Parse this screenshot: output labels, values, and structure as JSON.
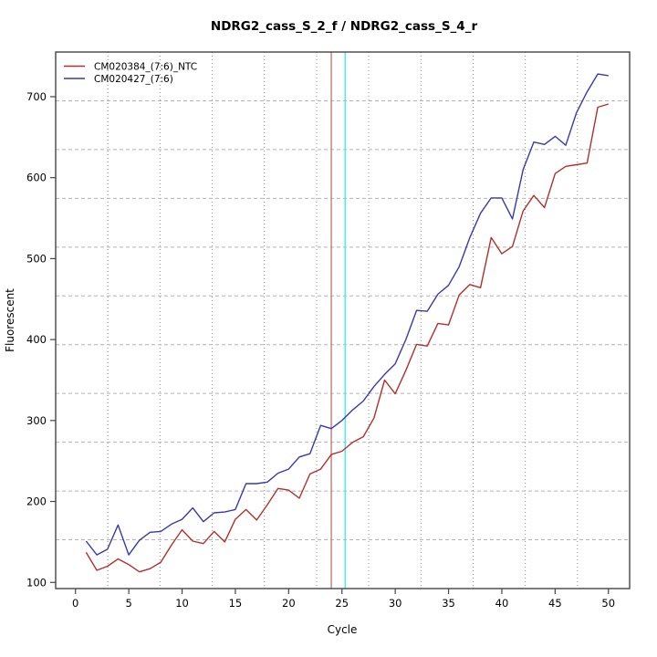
{
  "window": {
    "background": "#ffffff"
  },
  "chart_data": {
    "type": "line",
    "title": "NDRG2_cass_S_2_f / NDRG2_cass_S_4_r",
    "xlabel": "Cycle",
    "ylabel": "Fluorescent",
    "xlim": [
      -1.86,
      51.99
    ],
    "ylim": [
      92.4,
      755.2
    ],
    "x_ticks": [
      0,
      5,
      10,
      15,
      20,
      25,
      30,
      35,
      40,
      45,
      50
    ],
    "y_ticks": [
      100,
      200,
      300,
      400,
      500,
      600,
      700
    ],
    "grid": {
      "style": "offset-equal-divisions",
      "nx": 11,
      "ny": 11,
      "v_color": "#8f8f8f",
      "h_color": "#b4b4b4"
    },
    "legend_position": "top-left",
    "x": [
      1,
      2,
      3,
      4,
      5,
      6,
      7,
      8,
      9,
      10,
      11,
      12,
      13,
      14,
      15,
      16,
      17,
      18,
      19,
      20,
      21,
      22,
      23,
      24,
      25,
      26,
      27,
      28,
      29,
      30,
      31,
      32,
      33,
      34,
      35,
      36,
      37,
      38,
      39,
      40,
      41,
      42,
      43,
      44,
      45,
      46,
      47,
      48,
      49,
      50
    ],
    "series": [
      {
        "name": "CM020384_(7:6)_NTC",
        "color": "#B03030",
        "values": [
          137,
          115,
          120,
          129,
          122,
          113,
          117,
          125,
          146,
          165,
          151,
          148,
          163,
          150,
          178,
          190,
          177,
          196,
          216,
          214,
          204,
          234,
          240,
          258,
          262,
          273,
          280,
          303,
          350,
          333,
          362,
          394,
          392,
          420,
          418,
          455,
          468,
          464,
          526,
          506,
          515,
          559,
          578,
          563,
          605,
          614,
          616,
          618,
          687,
          691
        ]
      },
      {
        "name": "CM020427_(7:6)",
        "color": "#3939AC",
        "values": [
          151,
          134,
          141,
          171,
          134,
          152,
          162,
          163,
          172,
          178,
          192,
          175,
          186,
          187,
          190,
          222,
          222,
          224,
          235,
          240,
          255,
          259,
          294,
          290,
          300,
          313,
          324,
          342,
          357,
          370,
          400,
          436,
          435,
          456,
          467,
          490,
          526,
          556,
          575,
          575,
          549,
          610,
          644,
          641,
          651,
          640,
          680,
          706,
          728,
          726
        ]
      }
    ],
    "marker_lines": [
      {
        "name": "threshold-cycle-red",
        "x": 24.0,
        "color": "#C97B7B"
      },
      {
        "name": "threshold-cycle-cyan",
        "x": 25.3,
        "color": "#3DF0F0"
      }
    ]
  },
  "legend": {
    "entries": [
      {
        "label": "CM020384_(7:6)_NTC",
        "color": "#B03030"
      },
      {
        "label": "CM020427_(7:6)",
        "color": "#3939AC"
      }
    ]
  }
}
